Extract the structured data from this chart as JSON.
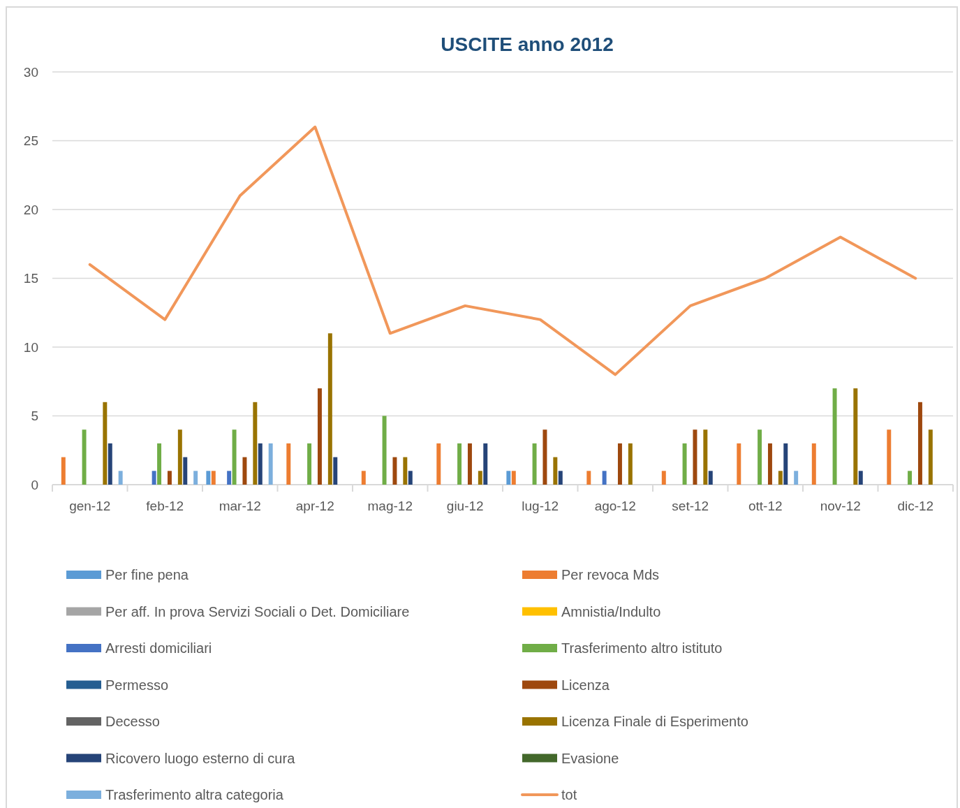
{
  "chart_data": {
    "type": "bar",
    "title": "USCITE anno 2012",
    "categories": [
      "gen-12",
      "feb-12",
      "mar-12",
      "apr-12",
      "mag-12",
      "giu-12",
      "lug-12",
      "ago-12",
      "set-12",
      "ott-12",
      "nov-12",
      "dic-12"
    ],
    "series": [
      {
        "name": "Per fine pena",
        "color": "#5b9bd5",
        "values": [
          0,
          0,
          1,
          0,
          0,
          0,
          1,
          0,
          0,
          0,
          0,
          0
        ]
      },
      {
        "name": "Per revoca Mds",
        "color": "#ed7d31",
        "values": [
          2,
          0,
          1,
          3,
          1,
          3,
          1,
          1,
          1,
          3,
          3,
          4
        ]
      },
      {
        "name": "Per aff. In prova Servizi Sociali o Det. Domiciliare",
        "color": "#a5a5a5",
        "values": [
          0,
          0,
          0,
          0,
          0,
          0,
          0,
          0,
          0,
          0,
          0,
          0
        ]
      },
      {
        "name": "Amnistia/Indulto",
        "color": "#ffc000",
        "values": [
          0,
          0,
          0,
          0,
          0,
          0,
          0,
          0,
          0,
          0,
          0,
          0
        ]
      },
      {
        "name": "Arresti domiciliari",
        "color": "#4472c4",
        "values": [
          0,
          1,
          1,
          0,
          0,
          0,
          0,
          1,
          0,
          0,
          0,
          0
        ]
      },
      {
        "name": "Trasferimento altro istituto",
        "color": "#70ad47",
        "values": [
          4,
          3,
          4,
          3,
          5,
          3,
          3,
          0,
          3,
          4,
          7,
          1
        ]
      },
      {
        "name": "Permesso",
        "color": "#255e91",
        "values": [
          0,
          0,
          0,
          0,
          0,
          0,
          0,
          0,
          0,
          0,
          0,
          0
        ]
      },
      {
        "name": "Licenza",
        "color": "#9e480e",
        "values": [
          0,
          1,
          2,
          7,
          2,
          3,
          4,
          3,
          4,
          3,
          0,
          6
        ]
      },
      {
        "name": "Decesso",
        "color": "#636363",
        "values": [
          0,
          0,
          0,
          0,
          0,
          0,
          0,
          0,
          0,
          0,
          0,
          0
        ]
      },
      {
        "name": "Licenza Finale di Esperimento",
        "color": "#997300",
        "values": [
          6,
          4,
          6,
          11,
          2,
          1,
          2,
          3,
          4,
          1,
          7,
          4
        ]
      },
      {
        "name": "Ricovero luogo esterno di cura",
        "color": "#264478",
        "values": [
          3,
          2,
          3,
          2,
          1,
          3,
          1,
          0,
          1,
          3,
          1,
          0
        ]
      },
      {
        "name": "Evasione",
        "color": "#43682b",
        "values": [
          0,
          0,
          0,
          0,
          0,
          0,
          0,
          0,
          0,
          0,
          0,
          0
        ]
      },
      {
        "name": "Trasferimento altra categoria",
        "color": "#7cafdd",
        "values": [
          1,
          1,
          3,
          0,
          0,
          0,
          0,
          0,
          0,
          1,
          0,
          0
        ]
      },
      {
        "name": "tot",
        "type": "line",
        "color": "#f1975a",
        "values": [
          16,
          12,
          21,
          26,
          11,
          13,
          12,
          8,
          13,
          15,
          18,
          15
        ]
      }
    ],
    "ylim": [
      0,
      30
    ],
    "yticks": [
      0,
      5,
      10,
      15,
      20,
      25,
      30
    ],
    "grid": "y",
    "legend": "bottom"
  }
}
